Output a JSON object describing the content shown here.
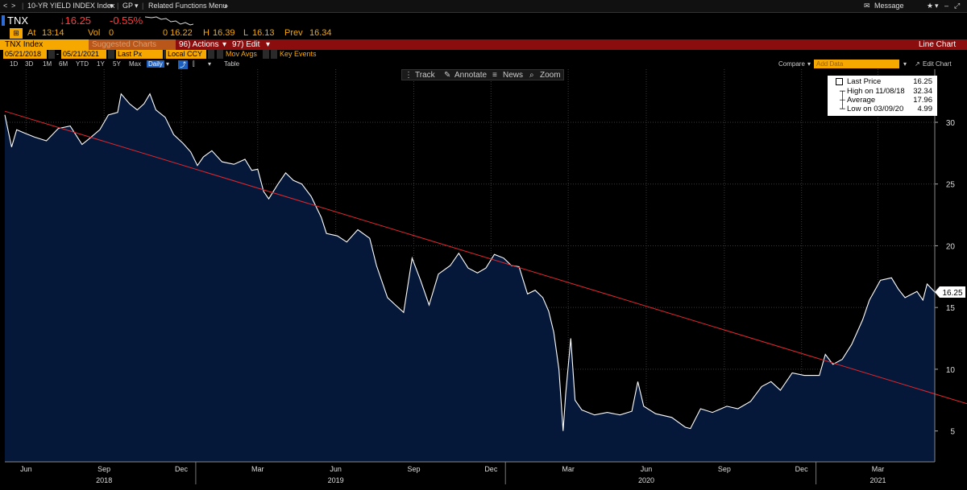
{
  "topbar": {
    "index_menu": "10-YR YIELD INDEX Index",
    "function": "GP",
    "related": "Related Functions Menu",
    "message": "Message"
  },
  "quote": {
    "ticker": "TNX",
    "price": "↓16.25",
    "change": "-0.55%",
    "at_label": "At",
    "time": "13:14",
    "vol_label": "Vol",
    "vol": "0",
    "open": "0 16.22",
    "high_label": "H",
    "high": "16.39",
    "low_label": "L",
    "low": "16.13",
    "prev_label": "Prev",
    "prev": "16.34"
  },
  "menubar": {
    "security": "TNX Index",
    "suggested": "Suggested Charts",
    "actions": "96) Actions",
    "edit": "97) Edit",
    "chart_type": "Line Chart"
  },
  "params": {
    "start_date": "05/21/2018",
    "end_date": "05/21/2021",
    "field": "Last Px",
    "currency": "Local CCY",
    "mov_avgs": "Mov Avgs",
    "key_events": "Key Events",
    "compare": "Compare",
    "add_data_placeholder": "Add Data",
    "edit_chart": "Edit Chart"
  },
  "periods": [
    "1D",
    "3D",
    "1M",
    "6M",
    "YTD",
    "1Y",
    "5Y",
    "Max",
    "Daily"
  ],
  "periods_table": "Table",
  "tools": {
    "track": "Track",
    "annotate": "Annotate",
    "news": "News",
    "zoom": "Zoom"
  },
  "legend": {
    "last_label": "Last Price",
    "last_value": "16.25",
    "high_label": "High on 11/08/18",
    "high_value": "32.34",
    "avg_label": "Average",
    "avg_value": "17.96",
    "low_label": "Low on 03/09/20",
    "low_value": "4.99"
  },
  "colors": {
    "area_fill": "#06183a",
    "line": "#ffffff",
    "trend": "#e0282d",
    "grid": "#3a3a3a",
    "accent": "#f7a800",
    "menu_red": "#8c0d0d"
  },
  "chart_data": {
    "type": "area",
    "title": "",
    "xlabel": "",
    "ylabel": "",
    "x_start": "05/21/2018",
    "x_end": "05/21/2021",
    "ylim": [
      2.5,
      34.3
    ],
    "y_ticks": [
      5,
      10,
      15,
      20,
      25,
      30
    ],
    "x_ticks": [
      {
        "label": "Jun",
        "date": "2018-06-15"
      },
      {
        "label": "Sep",
        "date": "2018-09-15"
      },
      {
        "label": "Dec",
        "date": "2018-12-15"
      },
      {
        "label": "Mar",
        "date": "2019-03-15"
      },
      {
        "label": "Jun",
        "date": "2019-06-15"
      },
      {
        "label": "Sep",
        "date": "2019-09-15"
      },
      {
        "label": "Dec",
        "date": "2019-12-15"
      },
      {
        "label": "Mar",
        "date": "2020-03-15"
      },
      {
        "label": "Jun",
        "date": "2020-06-15"
      },
      {
        "label": "Sep",
        "date": "2020-09-15"
      },
      {
        "label": "Dec",
        "date": "2020-12-15"
      },
      {
        "label": "Mar",
        "date": "2021-03-15"
      }
    ],
    "year_labels": [
      {
        "label": "2018",
        "date": "2018-09-15"
      },
      {
        "label": "2019",
        "date": "2019-06-15"
      },
      {
        "label": "2020",
        "date": "2020-06-15"
      },
      {
        "label": "2021",
        "date": "2021-03-15"
      }
    ],
    "year_breaks": [
      "2019-01-01",
      "2020-01-01",
      "2021-01-01"
    ],
    "grid": true,
    "legend_position": "top-right",
    "last_value_label": "16.25",
    "series": [
      {
        "name": "Last Price",
        "points": [
          [
            "2018-05-21",
            30.6
          ],
          [
            "2018-05-29",
            28.0
          ],
          [
            "2018-06-04",
            29.4
          ],
          [
            "2018-06-14",
            29.1
          ],
          [
            "2018-06-25",
            28.8
          ],
          [
            "2018-07-09",
            28.5
          ],
          [
            "2018-07-23",
            29.5
          ],
          [
            "2018-08-06",
            29.7
          ],
          [
            "2018-08-20",
            28.2
          ],
          [
            "2018-08-29",
            28.7
          ],
          [
            "2018-09-10",
            29.4
          ],
          [
            "2018-09-20",
            30.6
          ],
          [
            "2018-10-01",
            30.8
          ],
          [
            "2018-10-05",
            32.3
          ],
          [
            "2018-10-15",
            31.5
          ],
          [
            "2018-10-24",
            31.0
          ],
          [
            "2018-11-01",
            31.5
          ],
          [
            "2018-11-08",
            32.3
          ],
          [
            "2018-11-15",
            31.0
          ],
          [
            "2018-11-26",
            30.4
          ],
          [
            "2018-12-06",
            29.0
          ],
          [
            "2018-12-17",
            28.3
          ],
          [
            "2018-12-26",
            27.6
          ],
          [
            "2019-01-03",
            26.5
          ],
          [
            "2019-01-10",
            27.2
          ],
          [
            "2019-01-20",
            27.7
          ],
          [
            "2019-02-01",
            26.8
          ],
          [
            "2019-02-15",
            26.6
          ],
          [
            "2019-02-28",
            27.0
          ],
          [
            "2019-03-08",
            26.1
          ],
          [
            "2019-03-15",
            26.2
          ],
          [
            "2019-03-22",
            24.4
          ],
          [
            "2019-03-28",
            23.8
          ],
          [
            "2019-04-08",
            25.0
          ],
          [
            "2019-04-17",
            25.9
          ],
          [
            "2019-04-26",
            25.3
          ],
          [
            "2019-05-06",
            25.0
          ],
          [
            "2019-05-17",
            24.0
          ],
          [
            "2019-05-29",
            22.3
          ],
          [
            "2019-06-04",
            21.0
          ],
          [
            "2019-06-17",
            20.8
          ],
          [
            "2019-06-28",
            20.3
          ],
          [
            "2019-07-11",
            21.3
          ],
          [
            "2019-07-25",
            20.6
          ],
          [
            "2019-08-02",
            18.4
          ],
          [
            "2019-08-15",
            15.8
          ],
          [
            "2019-08-26",
            15.1
          ],
          [
            "2019-09-03",
            14.6
          ],
          [
            "2019-09-13",
            19.0
          ],
          [
            "2019-09-23",
            17.2
          ],
          [
            "2019-10-03",
            15.2
          ],
          [
            "2019-10-14",
            17.7
          ],
          [
            "2019-10-28",
            18.4
          ],
          [
            "2019-11-07",
            19.4
          ],
          [
            "2019-11-18",
            18.2
          ],
          [
            "2019-11-29",
            17.8
          ],
          [
            "2019-12-09",
            18.2
          ],
          [
            "2019-12-19",
            19.3
          ],
          [
            "2019-12-30",
            19.0
          ],
          [
            "2020-01-08",
            18.4
          ],
          [
            "2020-01-17",
            18.3
          ],
          [
            "2020-01-27",
            16.1
          ],
          [
            "2020-02-05",
            16.4
          ],
          [
            "2020-02-14",
            15.8
          ],
          [
            "2020-02-21",
            14.7
          ],
          [
            "2020-02-27",
            13.0
          ],
          [
            "2020-03-04",
            10.0
          ],
          [
            "2020-03-09",
            5.0
          ],
          [
            "2020-03-12",
            8.0
          ],
          [
            "2020-03-18",
            12.5
          ],
          [
            "2020-03-23",
            7.5
          ],
          [
            "2020-03-31",
            6.7
          ],
          [
            "2020-04-15",
            6.3
          ],
          [
            "2020-04-30",
            6.5
          ],
          [
            "2020-05-15",
            6.3
          ],
          [
            "2020-05-29",
            6.6
          ],
          [
            "2020-06-05",
            9.0
          ],
          [
            "2020-06-12",
            7.0
          ],
          [
            "2020-06-26",
            6.4
          ],
          [
            "2020-07-15",
            6.1
          ],
          [
            "2020-07-31",
            5.3
          ],
          [
            "2020-08-06",
            5.2
          ],
          [
            "2020-08-18",
            6.8
          ],
          [
            "2020-09-01",
            6.5
          ],
          [
            "2020-09-18",
            7.0
          ],
          [
            "2020-10-01",
            6.8
          ],
          [
            "2020-10-16",
            7.4
          ],
          [
            "2020-10-29",
            8.6
          ],
          [
            "2020-11-09",
            9.0
          ],
          [
            "2020-11-20",
            8.3
          ],
          [
            "2020-12-04",
            9.7
          ],
          [
            "2020-12-18",
            9.5
          ],
          [
            "2021-01-05",
            9.5
          ],
          [
            "2021-01-12",
            11.2
          ],
          [
            "2021-01-21",
            10.4
          ],
          [
            "2021-02-01",
            10.8
          ],
          [
            "2021-02-12",
            12.0
          ],
          [
            "2021-02-25",
            14.0
          ],
          [
            "2021-03-05",
            15.6
          ],
          [
            "2021-03-18",
            17.2
          ],
          [
            "2021-03-31",
            17.4
          ],
          [
            "2021-04-08",
            16.5
          ],
          [
            "2021-04-16",
            15.8
          ],
          [
            "2021-04-30",
            16.3
          ],
          [
            "2021-05-07",
            15.6
          ],
          [
            "2021-05-12",
            16.9
          ],
          [
            "2021-05-21",
            16.25
          ]
        ]
      },
      {
        "name": "Trend line",
        "points": [
          [
            "2018-05-21",
            30.9
          ],
          [
            "2021-05-21",
            8.0
          ]
        ]
      }
    ]
  }
}
